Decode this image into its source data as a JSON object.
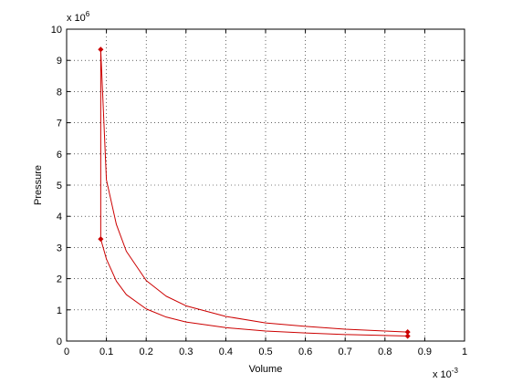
{
  "chart_data": {
    "type": "line",
    "title": "",
    "xlabel": "Volume",
    "ylabel": "Pressure",
    "xlim": [
      0,
      1
    ],
    "ylim": [
      0,
      10
    ],
    "x_multiplier": "x 10",
    "x_multiplier_exp": "-3",
    "y_multiplier": "x 10",
    "y_multiplier_exp": "6",
    "x_ticks": [
      "0",
      "0.1",
      "0.2",
      "0.3",
      "0.4",
      "0.5",
      "0.6",
      "0.7",
      "0.8",
      "0.9",
      "1"
    ],
    "y_ticks": [
      "0",
      "1",
      "2",
      "3",
      "4",
      "5",
      "6",
      "7",
      "8",
      "9",
      "10"
    ],
    "grid": true,
    "line_color": "#cc0000",
    "series": [
      {
        "x": [
          0.0857,
          0.0857,
          0.1,
          0.125,
          0.15,
          0.2,
          0.25,
          0.3,
          0.4,
          0.5,
          0.6,
          0.7,
          0.8,
          0.857,
          0.857,
          0.8,
          0.7,
          0.6,
          0.5,
          0.4,
          0.3,
          0.25,
          0.2,
          0.15,
          0.125,
          0.1,
          0.0857
        ],
        "y": [
          9.35,
          3.27,
          2.63,
          1.92,
          1.49,
          1.03,
          0.77,
          0.61,
          0.43,
          0.32,
          0.26,
          0.21,
          0.18,
          0.16,
          0.29,
          0.32,
          0.38,
          0.47,
          0.58,
          0.79,
          1.13,
          1.44,
          1.94,
          2.88,
          3.74,
          5.17,
          9.35
        ],
        "markers": [
          {
            "x": 0.0857,
            "y": 9.35
          },
          {
            "x": 0.0857,
            "y": 3.27
          },
          {
            "x": 0.857,
            "y": 0.16
          },
          {
            "x": 0.857,
            "y": 0.29
          }
        ]
      }
    ]
  }
}
